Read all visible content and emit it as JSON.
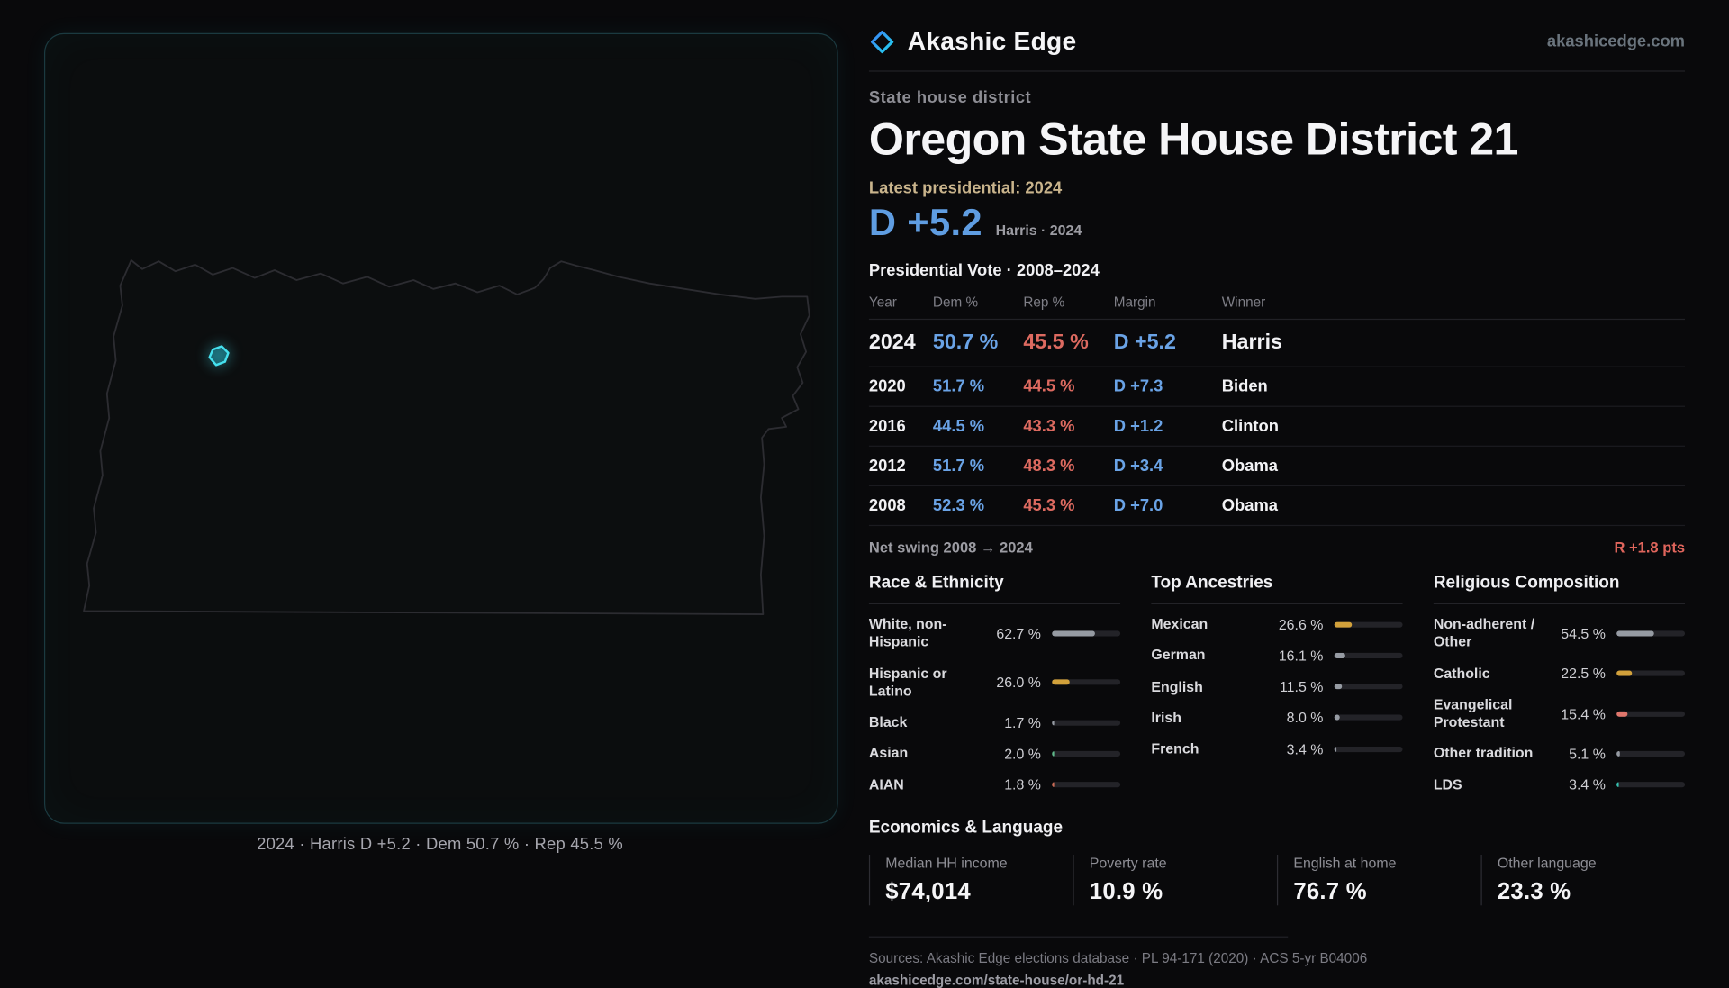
{
  "brand": {
    "name": "Akashic Edge",
    "domain": "akashicedge.com"
  },
  "header": {
    "kicker": "State house district",
    "title": "Oregon State House District 21",
    "latest_label": "Latest presidential: 2024",
    "margin_value": "D +5.2",
    "margin_context": "Harris · 2024"
  },
  "map": {
    "caption": "2024 · Harris D +5.2 · Dem 50.7 % · Rep 45.5 %"
  },
  "vote_table": {
    "title": "Presidential Vote · 2008–2024",
    "columns": [
      "Year",
      "Dem %",
      "Rep %",
      "Margin",
      "Winner"
    ],
    "rows": [
      {
        "year": "2024",
        "dem": "50.7 %",
        "rep": "45.5 %",
        "margin": "D +5.2",
        "winner": "Harris"
      },
      {
        "year": "2020",
        "dem": "51.7 %",
        "rep": "44.5 %",
        "margin": "D +7.3",
        "winner": "Biden"
      },
      {
        "year": "2016",
        "dem": "44.5 %",
        "rep": "43.3 %",
        "margin": "D +1.2",
        "winner": "Clinton"
      },
      {
        "year": "2012",
        "dem": "51.7 %",
        "rep": "48.3 %",
        "margin": "D +3.4",
        "winner": "Obama"
      },
      {
        "year": "2008",
        "dem": "52.3 %",
        "rep": "45.3 %",
        "margin": "D +7.0",
        "winner": "Obama"
      }
    ]
  },
  "swing": {
    "label": "Net swing 2008 → 2024",
    "value": "R +1.8 pts"
  },
  "demographics": {
    "race": {
      "heading": "Race & Ethnicity",
      "rows": [
        {
          "label": "White, non-Hispanic",
          "display": "62.7 %",
          "value": 62.7,
          "color": "#969ba3"
        },
        {
          "label": "Hispanic or Latino",
          "display": "26.0 %",
          "value": 26.0,
          "color": "#d2a13b"
        },
        {
          "label": "Black",
          "display": "1.7 %",
          "value": 1.7,
          "color": "#969ba3"
        },
        {
          "label": "Asian",
          "display": "2.0 %",
          "value": 2.0,
          "color": "#5fb98a"
        },
        {
          "label": "AIAN",
          "display": "1.8 %",
          "value": 1.8,
          "color": "#c96a55"
        }
      ]
    },
    "ancestry": {
      "heading": "Top Ancestries",
      "rows": [
        {
          "label": "Mexican",
          "display": "26.6 %",
          "value": 26.6,
          "color": "#d2a13b"
        },
        {
          "label": "German",
          "display": "16.1 %",
          "value": 16.1,
          "color": "#969ba3"
        },
        {
          "label": "English",
          "display": "11.5 %",
          "value": 11.5,
          "color": "#969ba3"
        },
        {
          "label": "Irish",
          "display": "8.0 %",
          "value": 8.0,
          "color": "#969ba3"
        },
        {
          "label": "French",
          "display": "3.4 %",
          "value": 3.4,
          "color": "#969ba3"
        }
      ]
    },
    "religion": {
      "heading": "Religious Composition",
      "rows": [
        {
          "label": "Non-adherent / Other",
          "display": "54.5 %",
          "value": 54.5,
          "color": "#969ba3"
        },
        {
          "label": "Catholic",
          "display": "22.5 %",
          "value": 22.5,
          "color": "#d2a13b"
        },
        {
          "label": "Evangelical Protestant",
          "display": "15.4 %",
          "value": 15.4,
          "color": "#e0766c"
        },
        {
          "label": "Other tradition",
          "display": "5.1 %",
          "value": 5.1,
          "color": "#969ba3"
        },
        {
          "label": "LDS",
          "display": "3.4 %",
          "value": 3.4,
          "color": "#35c0b0"
        }
      ]
    }
  },
  "economics": {
    "heading": "Economics & Language",
    "stats": [
      {
        "label": "Median HH income",
        "value": "$74,014"
      },
      {
        "label": "Poverty rate",
        "value": "10.9 %"
      },
      {
        "label": "English at home",
        "value": "76.7 %"
      },
      {
        "label": "Other language",
        "value": "23.3 %"
      }
    ]
  },
  "footer": {
    "sources": "Sources: Akashic Edge elections database · PL 94-171 (2020) · ACS 5-yr B04006",
    "url": "akashicedge.com/state-house/or-hd-21"
  },
  "colors": {
    "dem_blue": "#5f9de2",
    "rep_red": "#dd6a60",
    "accent_gold": "#d2a13b",
    "highlight_cyan": "#45e0ee",
    "tan": "#c9b48c"
  }
}
